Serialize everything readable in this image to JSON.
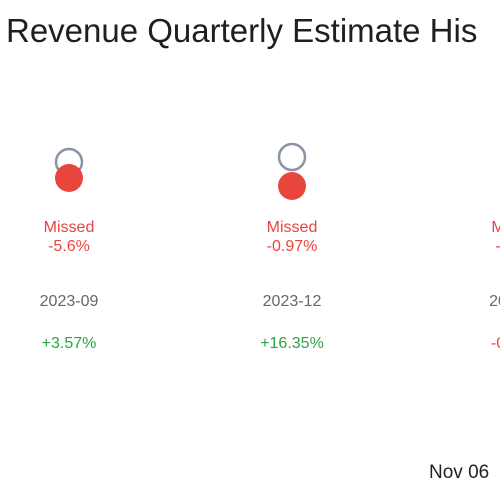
{
  "title": "Revenue Quarterly Estimate His",
  "footer_date": "Nov 06",
  "colors": {
    "missed": "#e8453c",
    "estimate_ring": "#8a93a8",
    "positive": "#27a644",
    "negative": "#e8453c",
    "period_text": "#666666"
  },
  "chart_data": {
    "type": "scatter",
    "title": "Revenue Quarterly Estimate His",
    "categories": [
      "2023-09",
      "2023-12",
      "20"
    ],
    "series": [
      {
        "name": "",
        "status": [
          "Missed",
          "Missed",
          "M"
        ],
        "surprise_pct": [
          "-5.6%",
          "-0.97%",
          "-"
        ],
        "change": [
          "+3.57%",
          "+16.35%",
          "-0"
        ],
        "change_sign": [
          "positive",
          "positive",
          "negative"
        ],
        "estimate_rel": [
          0.5,
          0.6,
          null
        ],
        "actual_rel": [
          0.78,
          0.62,
          null
        ]
      }
    ]
  }
}
